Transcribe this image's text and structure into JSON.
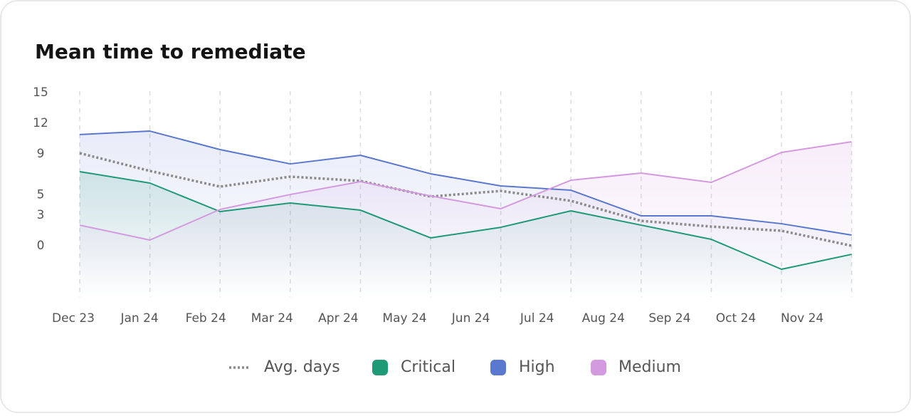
{
  "chart_data": {
    "type": "line",
    "title": "Mean time to remediate",
    "categories": [
      "Dec 23",
      "Jan 24",
      "Feb 24",
      "Mar 24",
      "Apr 24",
      "May 24",
      "Jun 24",
      "Jul 24",
      "Aug 24",
      "Sep 24",
      "Oct 24",
      "Nov 24"
    ],
    "series": [
      {
        "name": "Avg. days",
        "color": "#8a8a8a",
        "dotted": true,
        "values": [
          9.07,
          7.33,
          5.79,
          6.77,
          6.35,
          4.82,
          5.37,
          4.4,
          2.44,
          1.88,
          1.47,
          0
        ]
      },
      {
        "name": "Critical",
        "color": "#1f9a76",
        "fill": true,
        "values": [
          7.26,
          6.14,
          3.35,
          4.19,
          3.49,
          0.77,
          1.81,
          3.42,
          2.02,
          0.63,
          -2.3,
          -0.84
        ]
      },
      {
        "name": "High",
        "color": "#5b78cf",
        "fill": true,
        "values": [
          10.89,
          11.23,
          9.42,
          8.02,
          8.86,
          7.05,
          5.86,
          5.44,
          2.93,
          2.93,
          2.16,
          1.05
        ]
      },
      {
        "name": "Medium",
        "color": "#d49ae0",
        "fill": true,
        "values": [
          2.02,
          0.56,
          3.56,
          5.02,
          6.28,
          4.88,
          3.63,
          6.42,
          7.12,
          6.21,
          9.14,
          10.19
        ]
      }
    ],
    "ylim": [
      -5,
      15
    ],
    "yticks": [
      15,
      12,
      9,
      5,
      3,
      0
    ],
    "grid": true,
    "legend": "bottom"
  }
}
